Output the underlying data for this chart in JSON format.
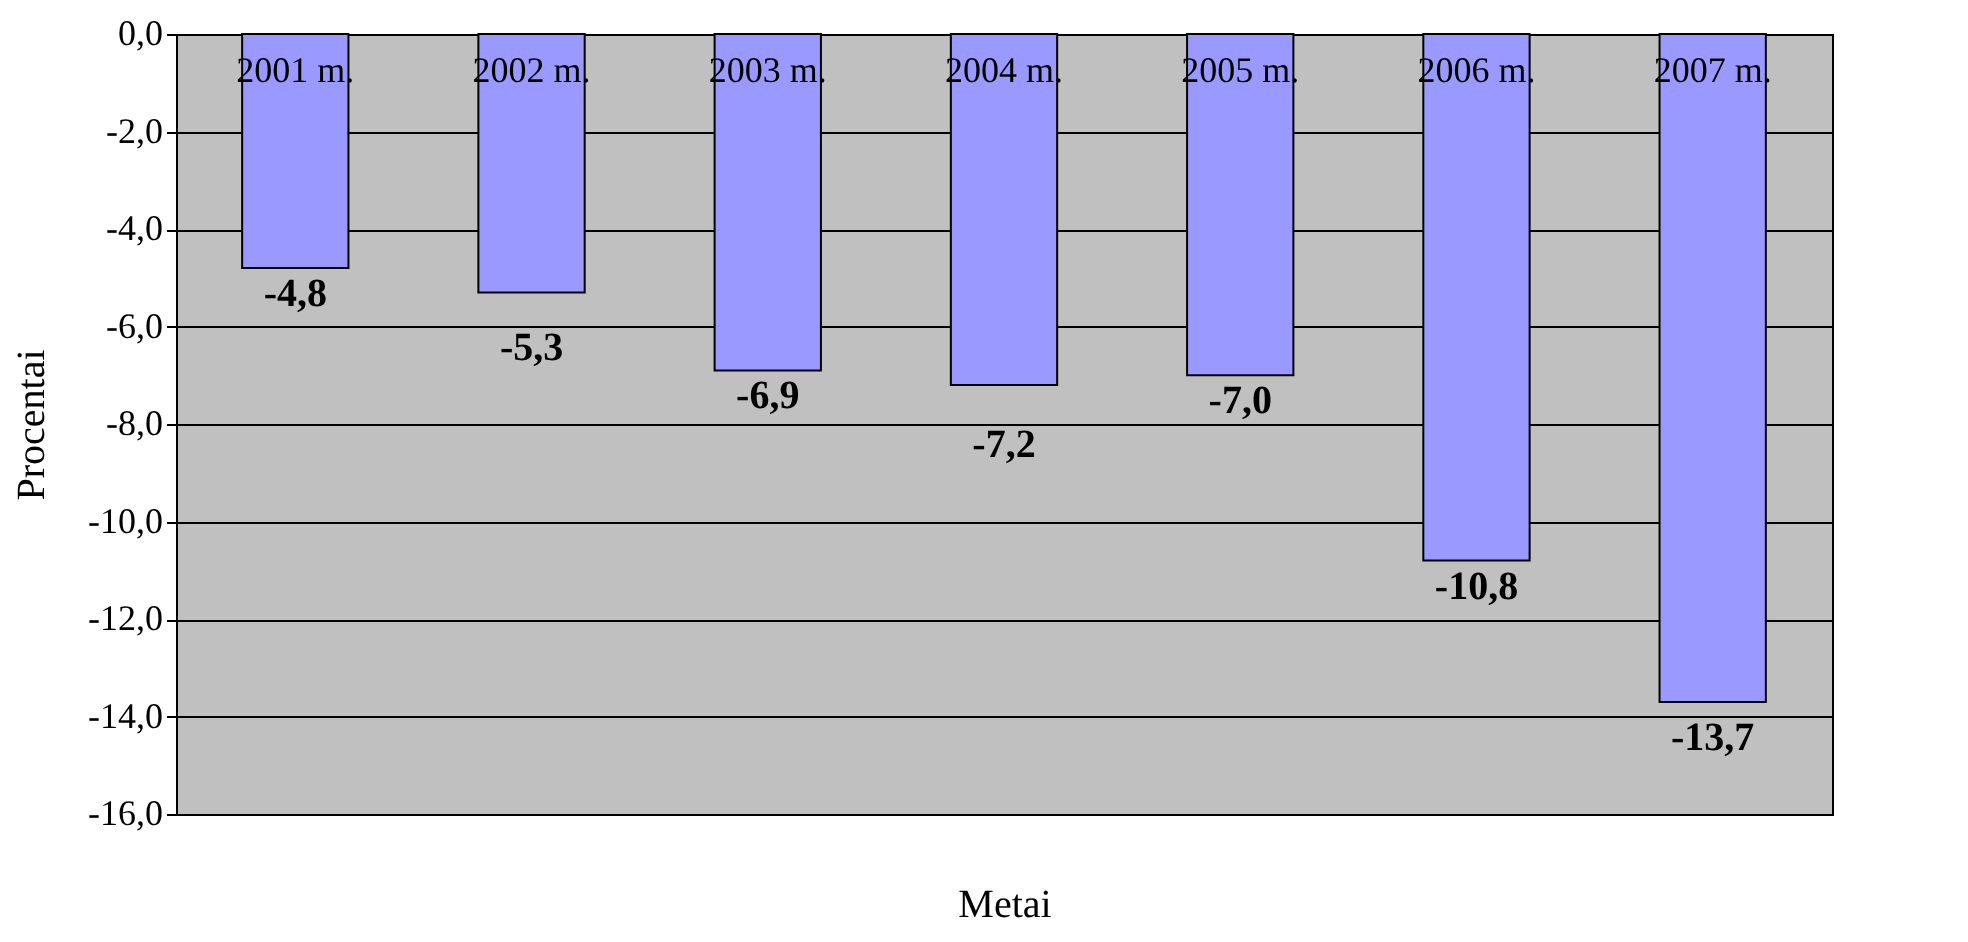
{
  "chart_data": {
    "type": "bar",
    "xlabel": "Metai",
    "ylabel": "Procentai",
    "categories": [
      "2001 m.",
      "2002 m.",
      "2003 m.",
      "2004 m.",
      "2005 m.",
      "2006 m.",
      "2007 m."
    ],
    "values": [
      -4.8,
      -5.3,
      -6.9,
      -7.2,
      -7.0,
      -10.8,
      -13.7
    ],
    "value_labels": [
      "-4,8",
      "-5,3",
      "-6,9",
      "-7,2",
      "-7,0",
      "-10,8",
      "-13,7"
    ],
    "color": "#9999ff",
    "ylim": [
      -16,
      0
    ],
    "yticks": [
      {
        "value": 0,
        "label": "0,0"
      },
      {
        "value": -2,
        "label": "-2,0"
      },
      {
        "value": -4,
        "label": "-4,0"
      },
      {
        "value": -6,
        "label": "-6,0"
      },
      {
        "value": -8,
        "label": "-8,0"
      },
      {
        "value": -10,
        "label": "-10,0"
      },
      {
        "value": -12,
        "label": "-12,0"
      },
      {
        "value": -14,
        "label": "-14,0"
      },
      {
        "value": -16,
        "label": "-16,0"
      }
    ],
    "grid": "y"
  }
}
